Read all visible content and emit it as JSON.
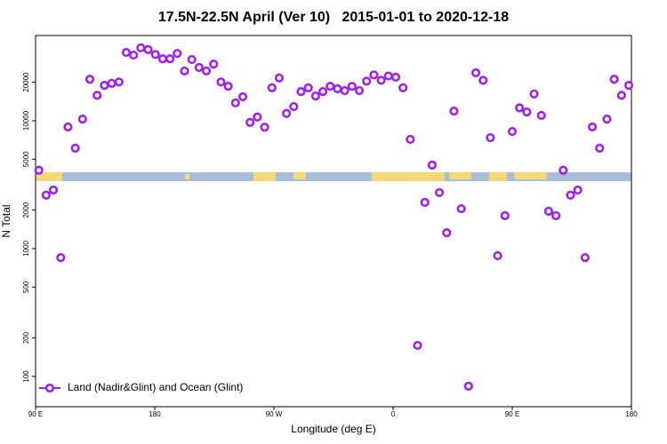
{
  "chart_data": {
    "type": "scatter",
    "title": "17.5N-22.5N April (Ver 10)   2015-01-01 to 2020-12-18",
    "x_label": "Longitude (deg E)",
    "y_label": "N Total",
    "log_y": true,
    "legend_position": "lower left",
    "xlim": [
      90,
      540
    ],
    "ylim": [
      58,
      46400
    ],
    "xticks": [
      {
        "value": 90,
        "label": "90 E"
      },
      180,
      {
        "value": 270,
        "label": "90 W"
      },
      {
        "value": 360,
        "label": "0"
      },
      {
        "value": 450,
        "label": "90 E"
      },
      {
        "value": 540,
        "label": "180"
      }
    ],
    "yticks": [
      100,
      200,
      500,
      1000,
      2000,
      5000,
      10000,
      20000
    ],
    "series": [
      {
        "name": "Land (Nadir&Glint) and Ocean (Glint)",
        "color": "#a020f0",
        "x": [
          92.5,
          98,
          103.5,
          109,
          114.5,
          120,
          125.5,
          131,
          136.5,
          142,
          147.5,
          153,
          158.5,
          164,
          169.5,
          175,
          180.5,
          186,
          191.5,
          197,
          202.5,
          208,
          213.5,
          219,
          224.5,
          230,
          235.5,
          241,
          246.5,
          252,
          257.5,
          263,
          268.5,
          274,
          279.5,
          285,
          290.5,
          296,
          301.5,
          307,
          312.5,
          318,
          323.5,
          329,
          334.5,
          340,
          345.5,
          351,
          356.5,
          362,
          367.5,
          373,
          378.5,
          384,
          389.5,
          395,
          400.5,
          406,
          411.5,
          417,
          422.5,
          428,
          433.5,
          439,
          444.5,
          450,
          455.5,
          461,
          466.5,
          472,
          477.5,
          483,
          488.5,
          494,
          499.5,
          505,
          510.5,
          516,
          521.5,
          527,
          532.5,
          538
        ],
        "values": [
          4100,
          2620,
          2870,
          850,
          8940,
          6100,
          10300,
          21100,
          15800,
          18900,
          19600,
          20100,
          34200,
          32600,
          37200,
          36000,
          33000,
          30500,
          30500,
          33600,
          24500,
          30100,
          26100,
          24500,
          27700,
          20100,
          18600,
          13800,
          15400,
          9700,
          10700,
          8900,
          18100,
          21600,
          11400,
          12900,
          16900,
          18100,
          15600,
          16900,
          18600,
          17800,
          17200,
          18600,
          17200,
          20400,
          22800,
          20700,
          22400,
          21900,
          18100,
          7150,
          175,
          2300,
          4500,
          2740,
          1330,
          11900,
          2050,
          84,
          23700,
          20700,
          7370,
          880,
          1810,
          8240,
          12600,
          11700,
          16200,
          11000,
          1960,
          1810,
          4100,
          2620,
          2870,
          850,
          8940,
          6100,
          10300,
          21100,
          15800,
          18900
        ]
      }
    ]
  }
}
